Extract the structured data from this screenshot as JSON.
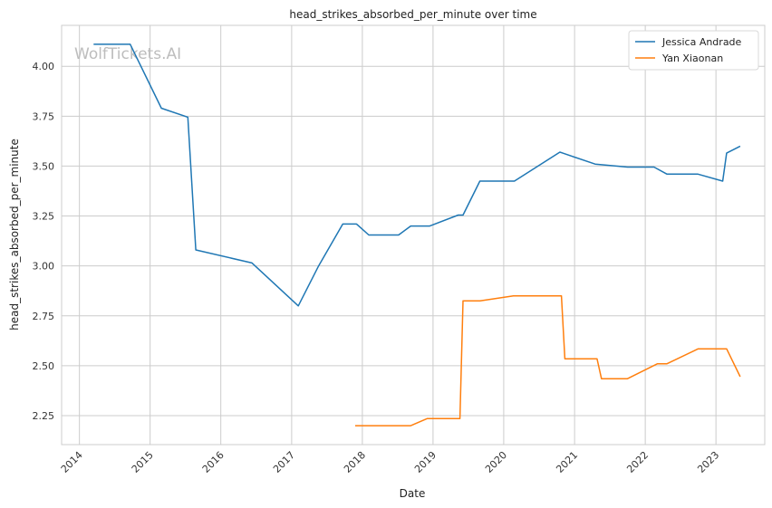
{
  "chart_data": {
    "type": "line",
    "title": "head_strikes_absorbed_per_minute over time",
    "xlabel": "Date",
    "ylabel": "head_strikes_absorbed_per_minute",
    "xlim": [
      "2013-10-01",
      "2023-09-10"
    ],
    "ylim": [
      2.105,
      4.205
    ],
    "x_ticks": [
      "2014",
      "2015",
      "2016",
      "2017",
      "2018",
      "2019",
      "2020",
      "2021",
      "2022",
      "2023"
    ],
    "y_ticks": [
      "2.25",
      "2.50",
      "2.75",
      "3.00",
      "3.25",
      "3.50",
      "3.75",
      "4.00"
    ],
    "grid": true,
    "legend_position": "top-right",
    "watermark": "WolfTickets.AI",
    "series": [
      {
        "name": "Jessica Andrade",
        "color": "#1f77b4",
        "points": [
          [
            "2014-03-15",
            4.11
          ],
          [
            "2014-09-20",
            4.11
          ],
          [
            "2015-02-28",
            3.79
          ],
          [
            "2015-07-15",
            3.745
          ],
          [
            "2015-08-25",
            3.08
          ],
          [
            "2016-06-10",
            3.015
          ],
          [
            "2017-02-04",
            2.8
          ],
          [
            "2017-05-20",
            3.0
          ],
          [
            "2017-09-22",
            3.21
          ],
          [
            "2017-12-02",
            3.21
          ],
          [
            "2018-02-03",
            3.155
          ],
          [
            "2018-07-07",
            3.155
          ],
          [
            "2018-09-08",
            3.2
          ],
          [
            "2018-12-15",
            3.2
          ],
          [
            "2019-05-11",
            3.255
          ],
          [
            "2019-06-05",
            3.255
          ],
          [
            "2019-08-31",
            3.425
          ],
          [
            "2020-02-25",
            3.425
          ],
          [
            "2020-10-17",
            3.57
          ],
          [
            "2020-11-01",
            3.565
          ],
          [
            "2021-04-17",
            3.51
          ],
          [
            "2021-10-01",
            3.495
          ],
          [
            "2022-02-15",
            3.495
          ],
          [
            "2022-04-23",
            3.46
          ],
          [
            "2022-09-30",
            3.46
          ],
          [
            "2023-02-05",
            3.425
          ],
          [
            "2023-02-25",
            3.565
          ],
          [
            "2023-05-06",
            3.6
          ]
        ]
      },
      {
        "name": "Yan Xiaonan",
        "color": "#ff7f0e",
        "points": [
          [
            "2017-11-25",
            2.2
          ],
          [
            "2018-09-08",
            2.2
          ],
          [
            "2018-12-01",
            2.235
          ],
          [
            "2019-05-20",
            2.235
          ],
          [
            "2019-06-05",
            2.825
          ],
          [
            "2019-09-01",
            2.825
          ],
          [
            "2020-02-20",
            2.85
          ],
          [
            "2020-10-25",
            2.85
          ],
          [
            "2020-11-12",
            2.535
          ],
          [
            "2021-04-27",
            2.535
          ],
          [
            "2021-05-20",
            2.435
          ],
          [
            "2021-10-01",
            2.435
          ],
          [
            "2022-03-05",
            2.51
          ],
          [
            "2022-04-23",
            2.51
          ],
          [
            "2022-10-01",
            2.585
          ],
          [
            "2023-02-25",
            2.585
          ],
          [
            "2023-05-06",
            2.445
          ]
        ]
      }
    ]
  }
}
